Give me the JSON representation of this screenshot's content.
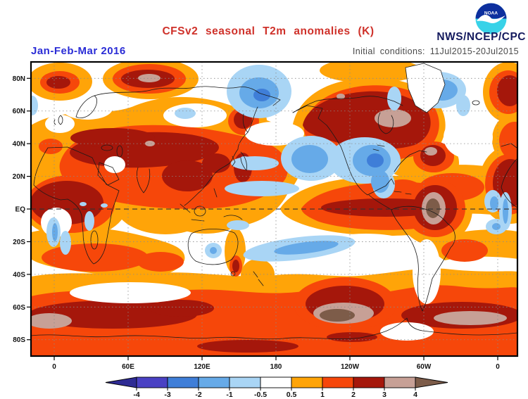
{
  "header": {
    "title": "CFSv2 seasonal T2m anomalies (K)",
    "org": "NWS/NCEP/CPC",
    "logo_text": "NOAA",
    "season": "Jan-Feb-Mar 2016",
    "init_conditions": "Initial conditions: 11Jul2015-20Jul2015"
  },
  "colors": {
    "title": "#cf312a",
    "season": "#2a2cd6",
    "init": "#4a4a4a",
    "org": "#141a5e",
    "axis": "#111111",
    "outline": "#1a1a1a",
    "grid": "#8a8a8a",
    "equator_line": "#333333",
    "logo_navy": "#0d2f9e",
    "logo_cyan": "#38d2e8",
    "palette": [
      "#2e2b94",
      "#4a41c4",
      "#3f7ed8",
      "#66aae8",
      "#a9d5f5",
      "#ffffff",
      "#ffa408",
      "#f6470a",
      "#a5170b",
      "#c7a096",
      "#7d5c49"
    ]
  },
  "chart_data": {
    "type": "heatmap",
    "title": "CFSv2 seasonal T2m anomalies (K)",
    "season": "Jan-Feb-Mar 2016",
    "initial_conditions": "11Jul2015-20Jul2015",
    "units": "K",
    "projection": "global lat-lon map, longitude 0E eastward through 180 to 0, latitude 90N-90S",
    "lat_ticks": [
      "80N",
      "60N",
      "40N",
      "20N",
      "EQ",
      "20S",
      "40S",
      "60S",
      "80S"
    ],
    "lon_ticks": [
      "0",
      "60E",
      "120E",
      "180",
      "120W",
      "60W",
      "0"
    ],
    "grid": "dotted every 20 deg latitude / 60 deg longitude, dashed equator",
    "colorbar": {
      "labels": [
        "-4",
        "-3",
        "-2",
        "-1",
        "-0.5",
        "0.5",
        "1",
        "2",
        "3",
        "4"
      ],
      "colors": [
        "#2e2b94",
        "#4a41c4",
        "#3f7ed8",
        "#66aae8",
        "#a9d5f5",
        "#ffffff",
        "#ffa408",
        "#f6470a",
        "#a5170b",
        "#c7a096",
        "#7d5c49"
      ],
      "open_ended": true
    },
    "anomaly_regions": [
      {
        "region": "Barents/Kara Seas and Arctic Eurasia",
        "anomaly_K": "+2 to +4"
      },
      {
        "region": "Eastern Europe / Central Asia belt",
        "anomaly_K": "+2 to +3"
      },
      {
        "region": "Sahara and North Africa",
        "anomaly_K": "+2 to +3"
      },
      {
        "region": "Tibet / East Asia patches",
        "anomaly_K": "+2 to +3"
      },
      {
        "region": "Alaska and western-central Canada (gray core near Hudson Bay)",
        "anomaly_K": "+2 to +4"
      },
      {
        "region": "Labrador Sea",
        "anomaly_K": "+2 to +3"
      },
      {
        "region": "Equatorial central-eastern Pacific (El Nino tongue)",
        "anomaly_K": "+1 to +3"
      },
      {
        "region": "Northern South America / Brazil core",
        "anomaly_K": "+3 to >+4"
      },
      {
        "region": "Subtropical North Atlantic band",
        "anomaly_K": "+0.5 to +2"
      },
      {
        "region": "Southern Ocean ring near 60S with gray-brown cores",
        "anomaly_K": "+2 to >+4"
      },
      {
        "region": "South Pacific blob ~55S",
        "anomaly_K": "+3 to >+4"
      },
      {
        "region": "Antarctica",
        "anomaly_K": "+1 to +2"
      },
      {
        "region": "Chukotka / Bering Strait region",
        "anomaly_K": "-0.5 to -2"
      },
      {
        "region": "Southern US / Mexico",
        "anomaly_K": "-0.5 to -2"
      },
      {
        "region": "Northeast Pacific",
        "anomaly_K": "-0.5 to -2"
      },
      {
        "region": "North Atlantic near Greenland/Iceland",
        "anomaly_K": "-0.5 to -2"
      },
      {
        "region": "Subtropical South Pacific streak",
        "anomaly_K": "-0.5 to -1"
      },
      {
        "region": "Benguela coast / Gulf of Guinea",
        "anomaly_K": "-0.5 to -1"
      },
      {
        "region": "Central Australia spot",
        "anomaly_K": "-0.5 to -1"
      }
    ]
  }
}
